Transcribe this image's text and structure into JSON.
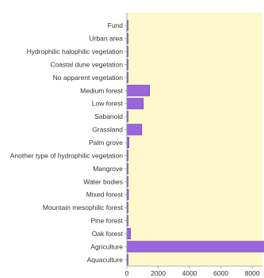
{
  "chart_data": {
    "type": "bar",
    "orientation": "horizontal",
    "title": "",
    "xlabel": "",
    "ylabel": "",
    "categories": [
      "Fund",
      "Urban area",
      "Hydrophilic halophilic vegetation",
      "Coastal dune vegetation",
      "No apparent vegetation",
      "Medium forest",
      "Low forest",
      "Sabanoid",
      "Grassland",
      "Palm grove",
      "Another type of hydrophilic vegetation",
      "Mangrove",
      "Water bodies",
      "Mixed forest",
      "Mountain mesophilic forest",
      "Pine forest",
      "Oak forest",
      "Agriculture",
      "Aquaculture"
    ],
    "values": [
      5,
      20,
      60,
      10,
      5,
      1450,
      1050,
      20,
      950,
      130,
      15,
      40,
      40,
      100,
      20,
      20,
      230,
      8800,
      20
    ],
    "x_ticks": [
      "0",
      "2000",
      "4000",
      "6000",
      "8000"
    ],
    "xlim": [
      0,
      8650
    ],
    "grid": false,
    "legend": "none",
    "colors": {
      "plot_bg": "#fff8cc",
      "bar_fill": "#9966dd",
      "bar_stroke": "#6a3fb0",
      "axis": "#999999",
      "text": "#333333"
    }
  }
}
